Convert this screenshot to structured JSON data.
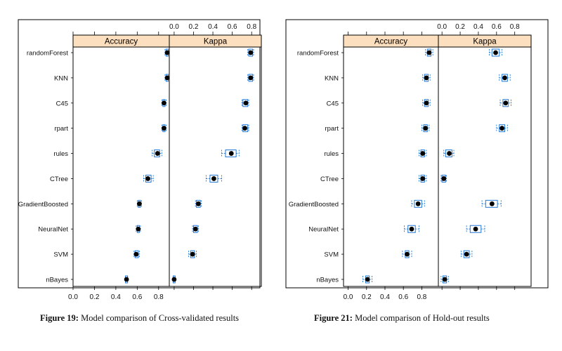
{
  "figures": [
    {
      "caption_label": "Figure 19:",
      "caption_text": " Model comparison of Cross-validated results"
    },
    {
      "caption_label": "Figure 21:",
      "caption_text": " Model comparison of Hold-out results"
    }
  ],
  "colors": {
    "strip": "#fcdfbe",
    "box": "#1f77d6",
    "dot": "#000000",
    "frame": "#000000"
  },
  "chart_data": [
    {
      "type": "scatter",
      "title": "",
      "models": [
        "randomForest",
        "KNN",
        "C45",
        "rpart",
        "rules",
        "CTree",
        "GradientBoosted",
        "NeuralNet",
        "SVM",
        "nBayes"
      ],
      "panels": [
        {
          "name": "Accuracy",
          "xlim": [
            0,
            0.9
          ],
          "ticks": [
            "0.0",
            "0.2",
            "0.4",
            "0.6",
            "0.8"
          ],
          "tick_values": [
            0,
            0.2,
            0.4,
            0.6,
            0.8
          ],
          "tick_side": "bottom",
          "values": [
            0.88,
            0.88,
            0.85,
            0.85,
            0.79,
            0.7,
            0.62,
            0.61,
            0.59,
            0.5
          ],
          "box": [
            [
              0.87,
              0.89
            ],
            [
              0.87,
              0.89
            ],
            [
              0.84,
              0.86
            ],
            [
              0.84,
              0.86
            ],
            [
              0.76,
              0.81
            ],
            [
              0.68,
              0.73
            ],
            [
              0.61,
              0.63
            ],
            [
              0.6,
              0.62
            ],
            [
              0.58,
              0.61
            ],
            [
              0.49,
              0.51
            ]
          ],
          "whisker": [
            [
              0.86,
              0.9
            ],
            [
              0.86,
              0.9
            ],
            [
              0.83,
              0.87
            ],
            [
              0.83,
              0.87
            ],
            [
              0.74,
              0.83
            ],
            [
              0.66,
              0.75
            ],
            [
              0.6,
              0.64
            ],
            [
              0.59,
              0.63
            ],
            [
              0.57,
              0.62
            ],
            [
              0.49,
              0.51
            ]
          ]
        },
        {
          "name": "Kappa",
          "xlim": [
            -0.05,
            0.9
          ],
          "ticks": [
            "0.0",
            "0.2",
            "0.4",
            "0.6",
            "0.8"
          ],
          "tick_values": [
            0,
            0.2,
            0.4,
            0.6,
            0.8
          ],
          "tick_side": "top",
          "values": [
            0.79,
            0.79,
            0.74,
            0.73,
            0.59,
            0.41,
            0.25,
            0.22,
            0.19,
            0.0
          ],
          "box": [
            [
              0.77,
              0.81
            ],
            [
              0.77,
              0.81
            ],
            [
              0.71,
              0.76
            ],
            [
              0.71,
              0.76
            ],
            [
              0.53,
              0.64
            ],
            [
              0.37,
              0.45
            ],
            [
              0.23,
              0.27
            ],
            [
              0.2,
              0.24
            ],
            [
              0.17,
              0.21
            ],
            [
              -0.01,
              0.01
            ]
          ],
          "whisker": [
            [
              0.76,
              0.82
            ],
            [
              0.76,
              0.82
            ],
            [
              0.7,
              0.77
            ],
            [
              0.7,
              0.77
            ],
            [
              0.49,
              0.67
            ],
            [
              0.33,
              0.49
            ],
            [
              0.22,
              0.28
            ],
            [
              0.19,
              0.25
            ],
            [
              0.15,
              0.23
            ],
            [
              -0.01,
              0.01
            ]
          ]
        }
      ]
    },
    {
      "type": "scatter",
      "title": "",
      "models": [
        "randomForest",
        "KNN",
        "C45",
        "rpart",
        "rules",
        "CTree",
        "GradientBoosted",
        "NeuralNet",
        "SVM",
        "nBayes"
      ],
      "panels": [
        {
          "name": "Accuracy",
          "xlim": [
            -0.05,
            0.98
          ],
          "ticks": [
            "0.0",
            "0.2",
            "0.4",
            "0.6",
            "0.8"
          ],
          "tick_values": [
            0,
            0.2,
            0.4,
            0.6,
            0.8
          ],
          "tick_side": "bottom",
          "values": [
            0.88,
            0.85,
            0.85,
            0.84,
            0.81,
            0.81,
            0.76,
            0.69,
            0.64,
            0.21
          ],
          "box": [
            [
              0.86,
              0.9
            ],
            [
              0.83,
              0.87
            ],
            [
              0.83,
              0.87
            ],
            [
              0.82,
              0.86
            ],
            [
              0.79,
              0.83
            ],
            [
              0.79,
              0.83
            ],
            [
              0.72,
              0.8
            ],
            [
              0.65,
              0.73
            ],
            [
              0.62,
              0.66
            ],
            [
              0.19,
              0.23
            ]
          ],
          "whisker": [
            [
              0.84,
              0.92
            ],
            [
              0.81,
              0.89
            ],
            [
              0.81,
              0.89
            ],
            [
              0.8,
              0.88
            ],
            [
              0.77,
              0.85
            ],
            [
              0.77,
              0.85
            ],
            [
              0.69,
              0.83
            ],
            [
              0.61,
              0.77
            ],
            [
              0.59,
              0.69
            ],
            [
              0.16,
              0.26
            ]
          ]
        },
        {
          "name": "Kappa",
          "xlim": [
            -0.04,
            0.98
          ],
          "ticks": [
            "0.0",
            "0.2",
            "0.4",
            "0.6",
            "0.8"
          ],
          "tick_values": [
            0,
            0.2,
            0.4,
            0.6,
            0.8
          ],
          "tick_side": "top",
          "values": [
            0.59,
            0.69,
            0.7,
            0.66,
            0.08,
            0.02,
            0.55,
            0.37,
            0.27,
            0.03
          ],
          "box": [
            [
              0.55,
              0.63
            ],
            [
              0.66,
              0.72
            ],
            [
              0.67,
              0.73
            ],
            [
              0.63,
              0.69
            ],
            [
              0.04,
              0.11
            ],
            [
              0.0,
              0.04
            ],
            [
              0.48,
              0.61
            ],
            [
              0.31,
              0.43
            ],
            [
              0.24,
              0.3
            ],
            [
              0.01,
              0.05
            ]
          ],
          "whisker": [
            [
              0.52,
              0.66
            ],
            [
              0.63,
              0.75
            ],
            [
              0.64,
              0.76
            ],
            [
              0.6,
              0.72
            ],
            [
              0.02,
              0.13
            ],
            [
              -0.01,
              0.05
            ],
            [
              0.44,
              0.65
            ],
            [
              0.27,
              0.47
            ],
            [
              0.21,
              0.33
            ],
            [
              -0.01,
              0.07
            ]
          ]
        }
      ]
    }
  ]
}
